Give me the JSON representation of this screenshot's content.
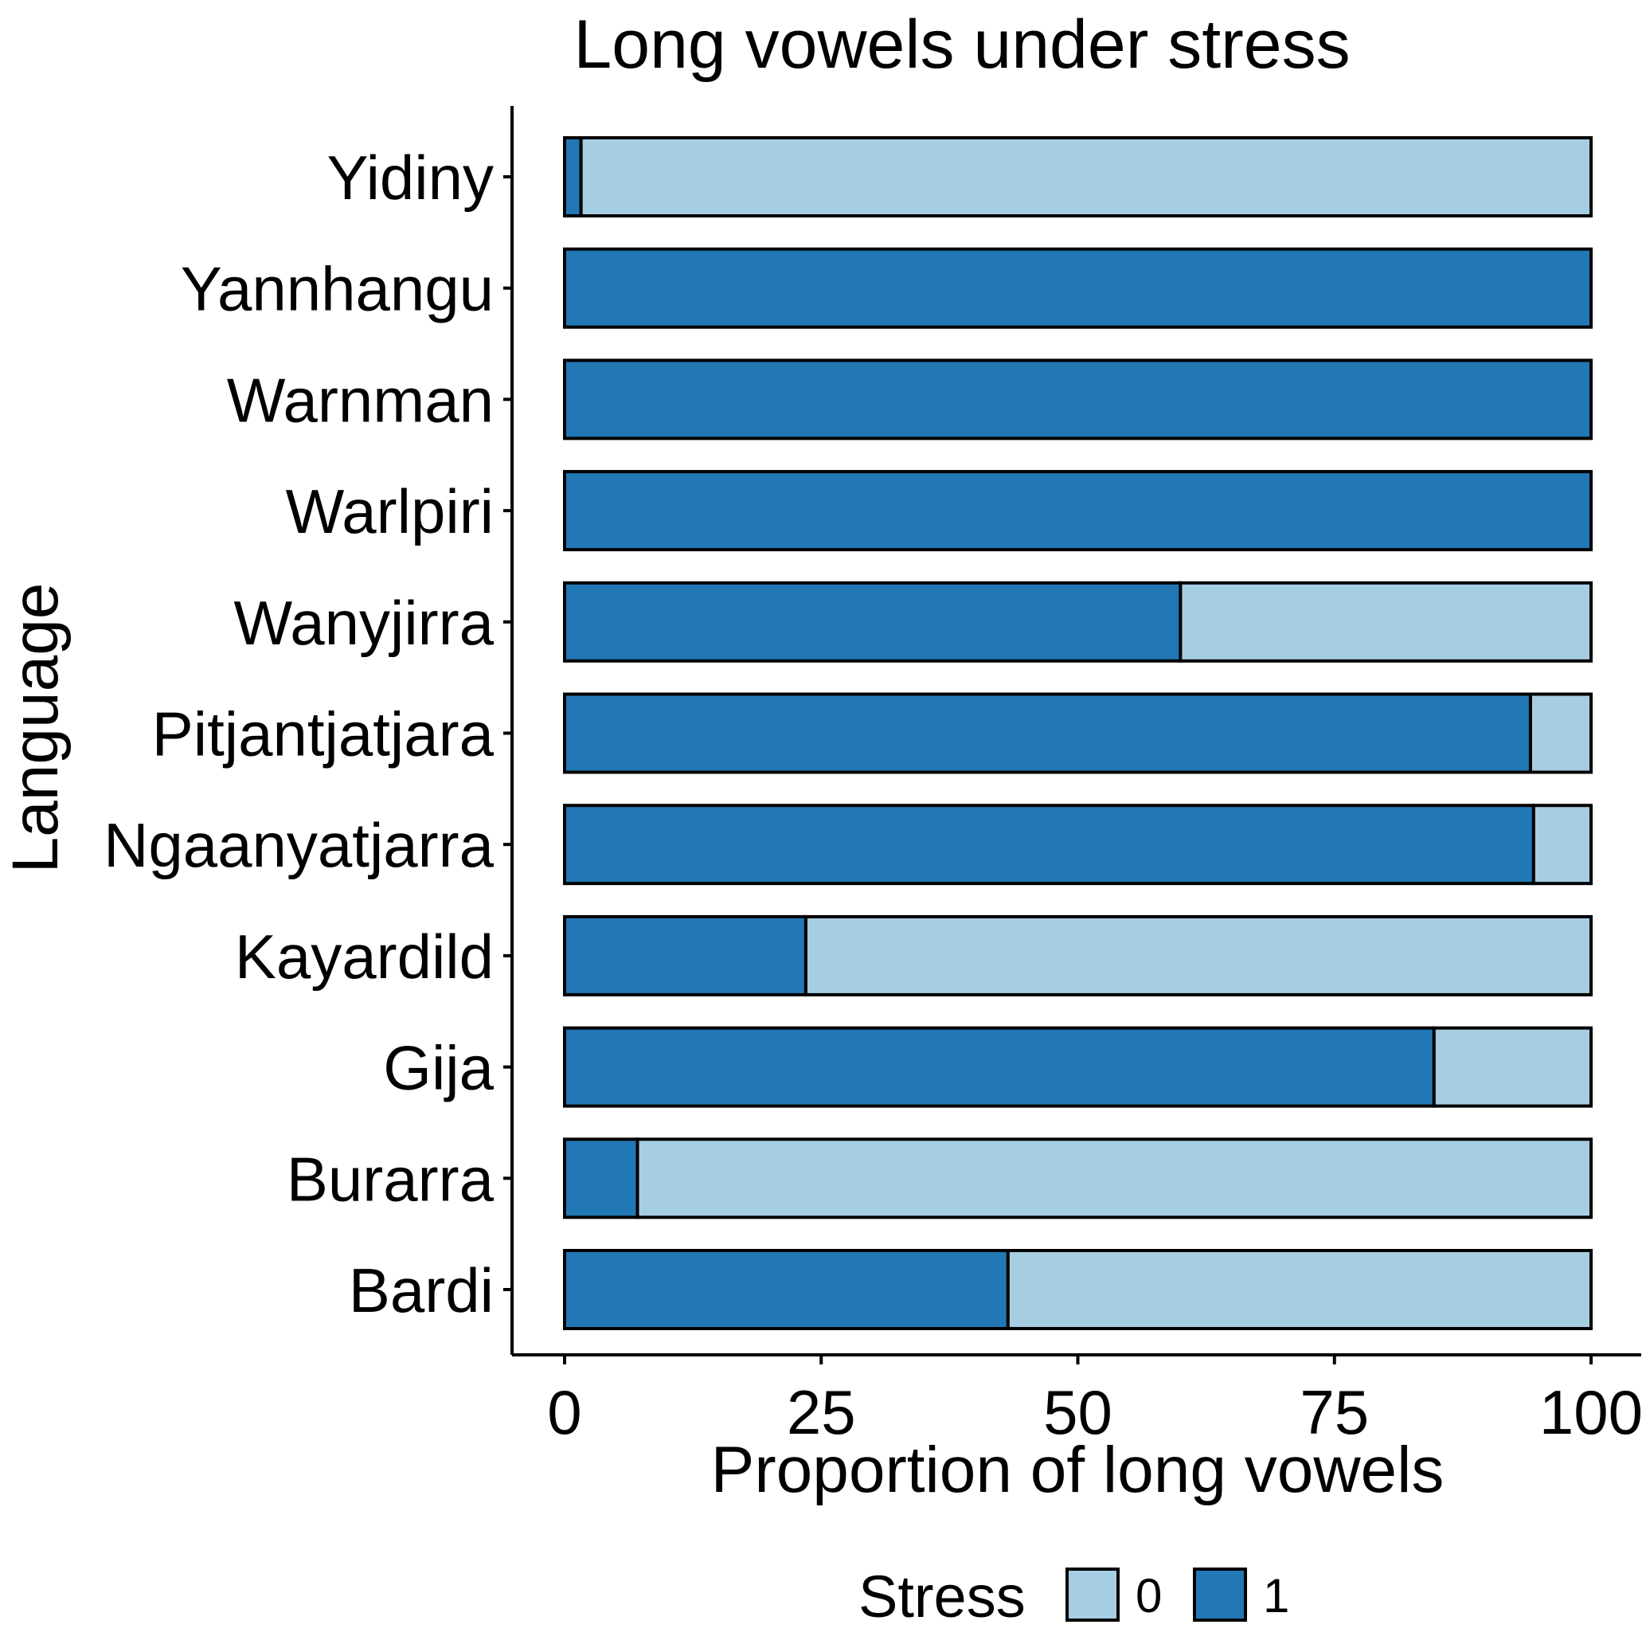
{
  "chart_data": {
    "type": "bar",
    "orientation": "horizontal",
    "stacked": true,
    "title": "Long vowels under stress",
    "xlabel": "Proportion of long vowels",
    "ylabel": "Language",
    "xlim": [
      0,
      100
    ],
    "xticks": [
      0,
      25,
      50,
      75,
      100
    ],
    "categories": [
      "Yidiny",
      "Yannhangu",
      "Warnman",
      "Warlpiri",
      "Wanyjirra",
      "Pitjantjatjara",
      "Ngaanyatjarra",
      "Kayardild",
      "Gija",
      "Burarra",
      "Bardi"
    ],
    "series": [
      {
        "name": "1",
        "color": "#2178b4",
        "values": [
          1.6,
          100,
          100,
          100,
          60,
          94.1,
          94.4,
          23.5,
          84.7,
          7.1,
          43.2
        ]
      },
      {
        "name": "0",
        "color": "#a6cee3",
        "values": [
          98.4,
          0,
          0,
          0,
          40,
          5.9,
          5.6,
          76.5,
          15.3,
          92.9,
          56.8
        ]
      }
    ],
    "legend": {
      "title": "Stress",
      "position": "bottom",
      "entries": [
        {
          "label": "0",
          "color": "#a6cee3"
        },
        {
          "label": "1",
          "color": "#2178b4"
        }
      ]
    },
    "grid": false
  }
}
